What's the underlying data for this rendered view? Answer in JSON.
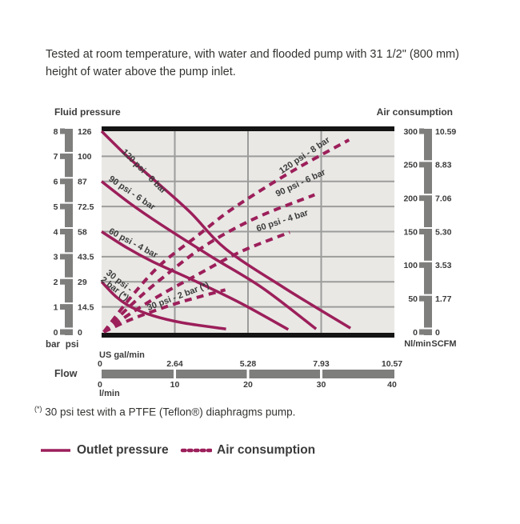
{
  "header": {
    "note": "Tested at room temperature, with water and flooded pump with 31 1/2\" (800 mm) height of water above the pump inlet."
  },
  "colors": {
    "curve": "#9c1f5a",
    "grid": "#9c9c9b",
    "plot_bg": "#e9e8e5",
    "ruler": "#7e7e7d",
    "frame": "#141414",
    "text": "#3b3b3b"
  },
  "chart_data": {
    "type": "line",
    "titles": {
      "left_axis": "Fluid pressure",
      "right_axis": "Air consumption",
      "bottom_axis": "Flow"
    },
    "left_axis": {
      "unit_labels": [
        "bar",
        "psi"
      ],
      "bar_ticks": [
        "8",
        "7",
        "6",
        "5",
        "4",
        "3",
        "2",
        "1",
        "0"
      ],
      "psi_ticks": [
        "126",
        "100",
        "87",
        "72.5",
        "58",
        "43.5",
        "29",
        "14.5",
        "0"
      ],
      "range_bar": [
        0,
        8
      ],
      "grid": true
    },
    "right_axis": {
      "unit_labels": [
        "Nl/min",
        "SCFM"
      ],
      "nlmin_ticks": [
        "300",
        "250",
        "200",
        "150",
        "100",
        "50",
        "0"
      ],
      "scfm_ticks": [
        "10.59",
        "8.83",
        "7.06",
        "5.30",
        "3.53",
        "1.77",
        "0"
      ],
      "range_nlmin": [
        0,
        300
      ]
    },
    "bottom_axis": {
      "unit_labels": [
        "US gal/min",
        "l/min"
      ],
      "usgal_ticks": [
        "0",
        "2.64",
        "5.28",
        "7.93",
        "10.57"
      ],
      "lmin_ticks": [
        "0",
        "10",
        "20",
        "30",
        "40"
      ],
      "range_lmin": [
        0,
        40
      ],
      "gridline_positions_lmin": [
        10,
        20,
        30
      ]
    },
    "series": {
      "outlet_pressure": [
        {
          "label": "120 psi - 8 bar",
          "label_angle": 45,
          "label_at": [
            2.7,
            7.15
          ],
          "points_flow_bar": [
            [
              0,
              8
            ],
            [
              3.5,
              7.0
            ],
            [
              7,
              6.1
            ],
            [
              12,
              4.8
            ],
            [
              17,
              3.3
            ],
            [
              25,
              1.75
            ],
            [
              34,
              0.15
            ]
          ]
        },
        {
          "label": "90 psi - 6 bar",
          "label_angle": 34,
          "label_at": [
            0.9,
            6.05
          ],
          "points_flow_bar": [
            [
              0,
              6
            ],
            [
              4,
              5.1
            ],
            [
              8,
              4.3
            ],
            [
              15,
              3.0
            ],
            [
              22,
              1.75
            ],
            [
              29.3,
              0.12
            ]
          ]
        },
        {
          "label": "60 psi - 4 bar",
          "label_angle": 28,
          "label_at": [
            0.9,
            3.95
          ],
          "points_flow_bar": [
            [
              0,
              4
            ],
            [
              3.5,
              3.35
            ],
            [
              7,
              2.8
            ],
            [
              13,
              2.0
            ],
            [
              19,
              1.15
            ],
            [
              25.5,
              0.1
            ]
          ]
        },
        {
          "label": "30 psi -",
          "label2": "2 bar (*)",
          "label_angle": 38,
          "label_at": [
            0.55,
            2.32
          ],
          "points_flow_bar": [
            [
              0,
              2
            ],
            [
              2,
              1.4
            ],
            [
              4,
              1.0
            ],
            [
              7,
              0.65
            ],
            [
              11,
              0.37
            ],
            [
              17,
              0.12
            ]
          ]
        }
      ],
      "air_consumption": [
        {
          "label": "120 psi - 8 bar",
          "label_angle": -34,
          "label_at": [
            24.6,
            236
          ],
          "points_flow_nlmin": [
            [
              0.3,
              0
            ],
            [
              4,
              52
            ],
            [
              8,
              100
            ],
            [
              13,
              143
            ],
            [
              18,
              185
            ],
            [
              26,
              240
            ],
            [
              33.8,
              287
            ]
          ]
        },
        {
          "label": "90 psi - 6 bar",
          "label_angle": -25,
          "label_at": [
            24.0,
            202
          ],
          "points_flow_nlmin": [
            [
              0.3,
              0
            ],
            [
              4,
              40
            ],
            [
              8,
              78
            ],
            [
              14,
              128
            ],
            [
              21,
              170
            ],
            [
              29.1,
              205
            ]
          ]
        },
        {
          "label": "60 psi - 4 bar",
          "label_angle": -18,
          "label_at": [
            21.3,
            150
          ],
          "points_flow_nlmin": [
            [
              0.3,
              0
            ],
            [
              4,
              28
            ],
            [
              8,
              55
            ],
            [
              13,
              85
            ],
            [
              19,
              120
            ],
            [
              25.7,
              149
            ]
          ]
        },
        {
          "label": "30 psi - 2 bar (*)",
          "label_angle": -21,
          "label_at": [
            6.4,
            32
          ],
          "points_flow_nlmin": [
            [
              0.3,
              0
            ],
            [
              3,
              14
            ],
            [
              6,
              27
            ],
            [
              10,
              42
            ],
            [
              13.5,
              53
            ],
            [
              16.9,
              63
            ]
          ]
        }
      ]
    }
  },
  "footnote": {
    "marker": "(*)",
    "text": "30 psi test with a PTFE (Teflon®) diaphragms pump."
  },
  "legend": {
    "outlet_pressure": "Outlet pressure",
    "air_consumption": "Air consumption"
  }
}
